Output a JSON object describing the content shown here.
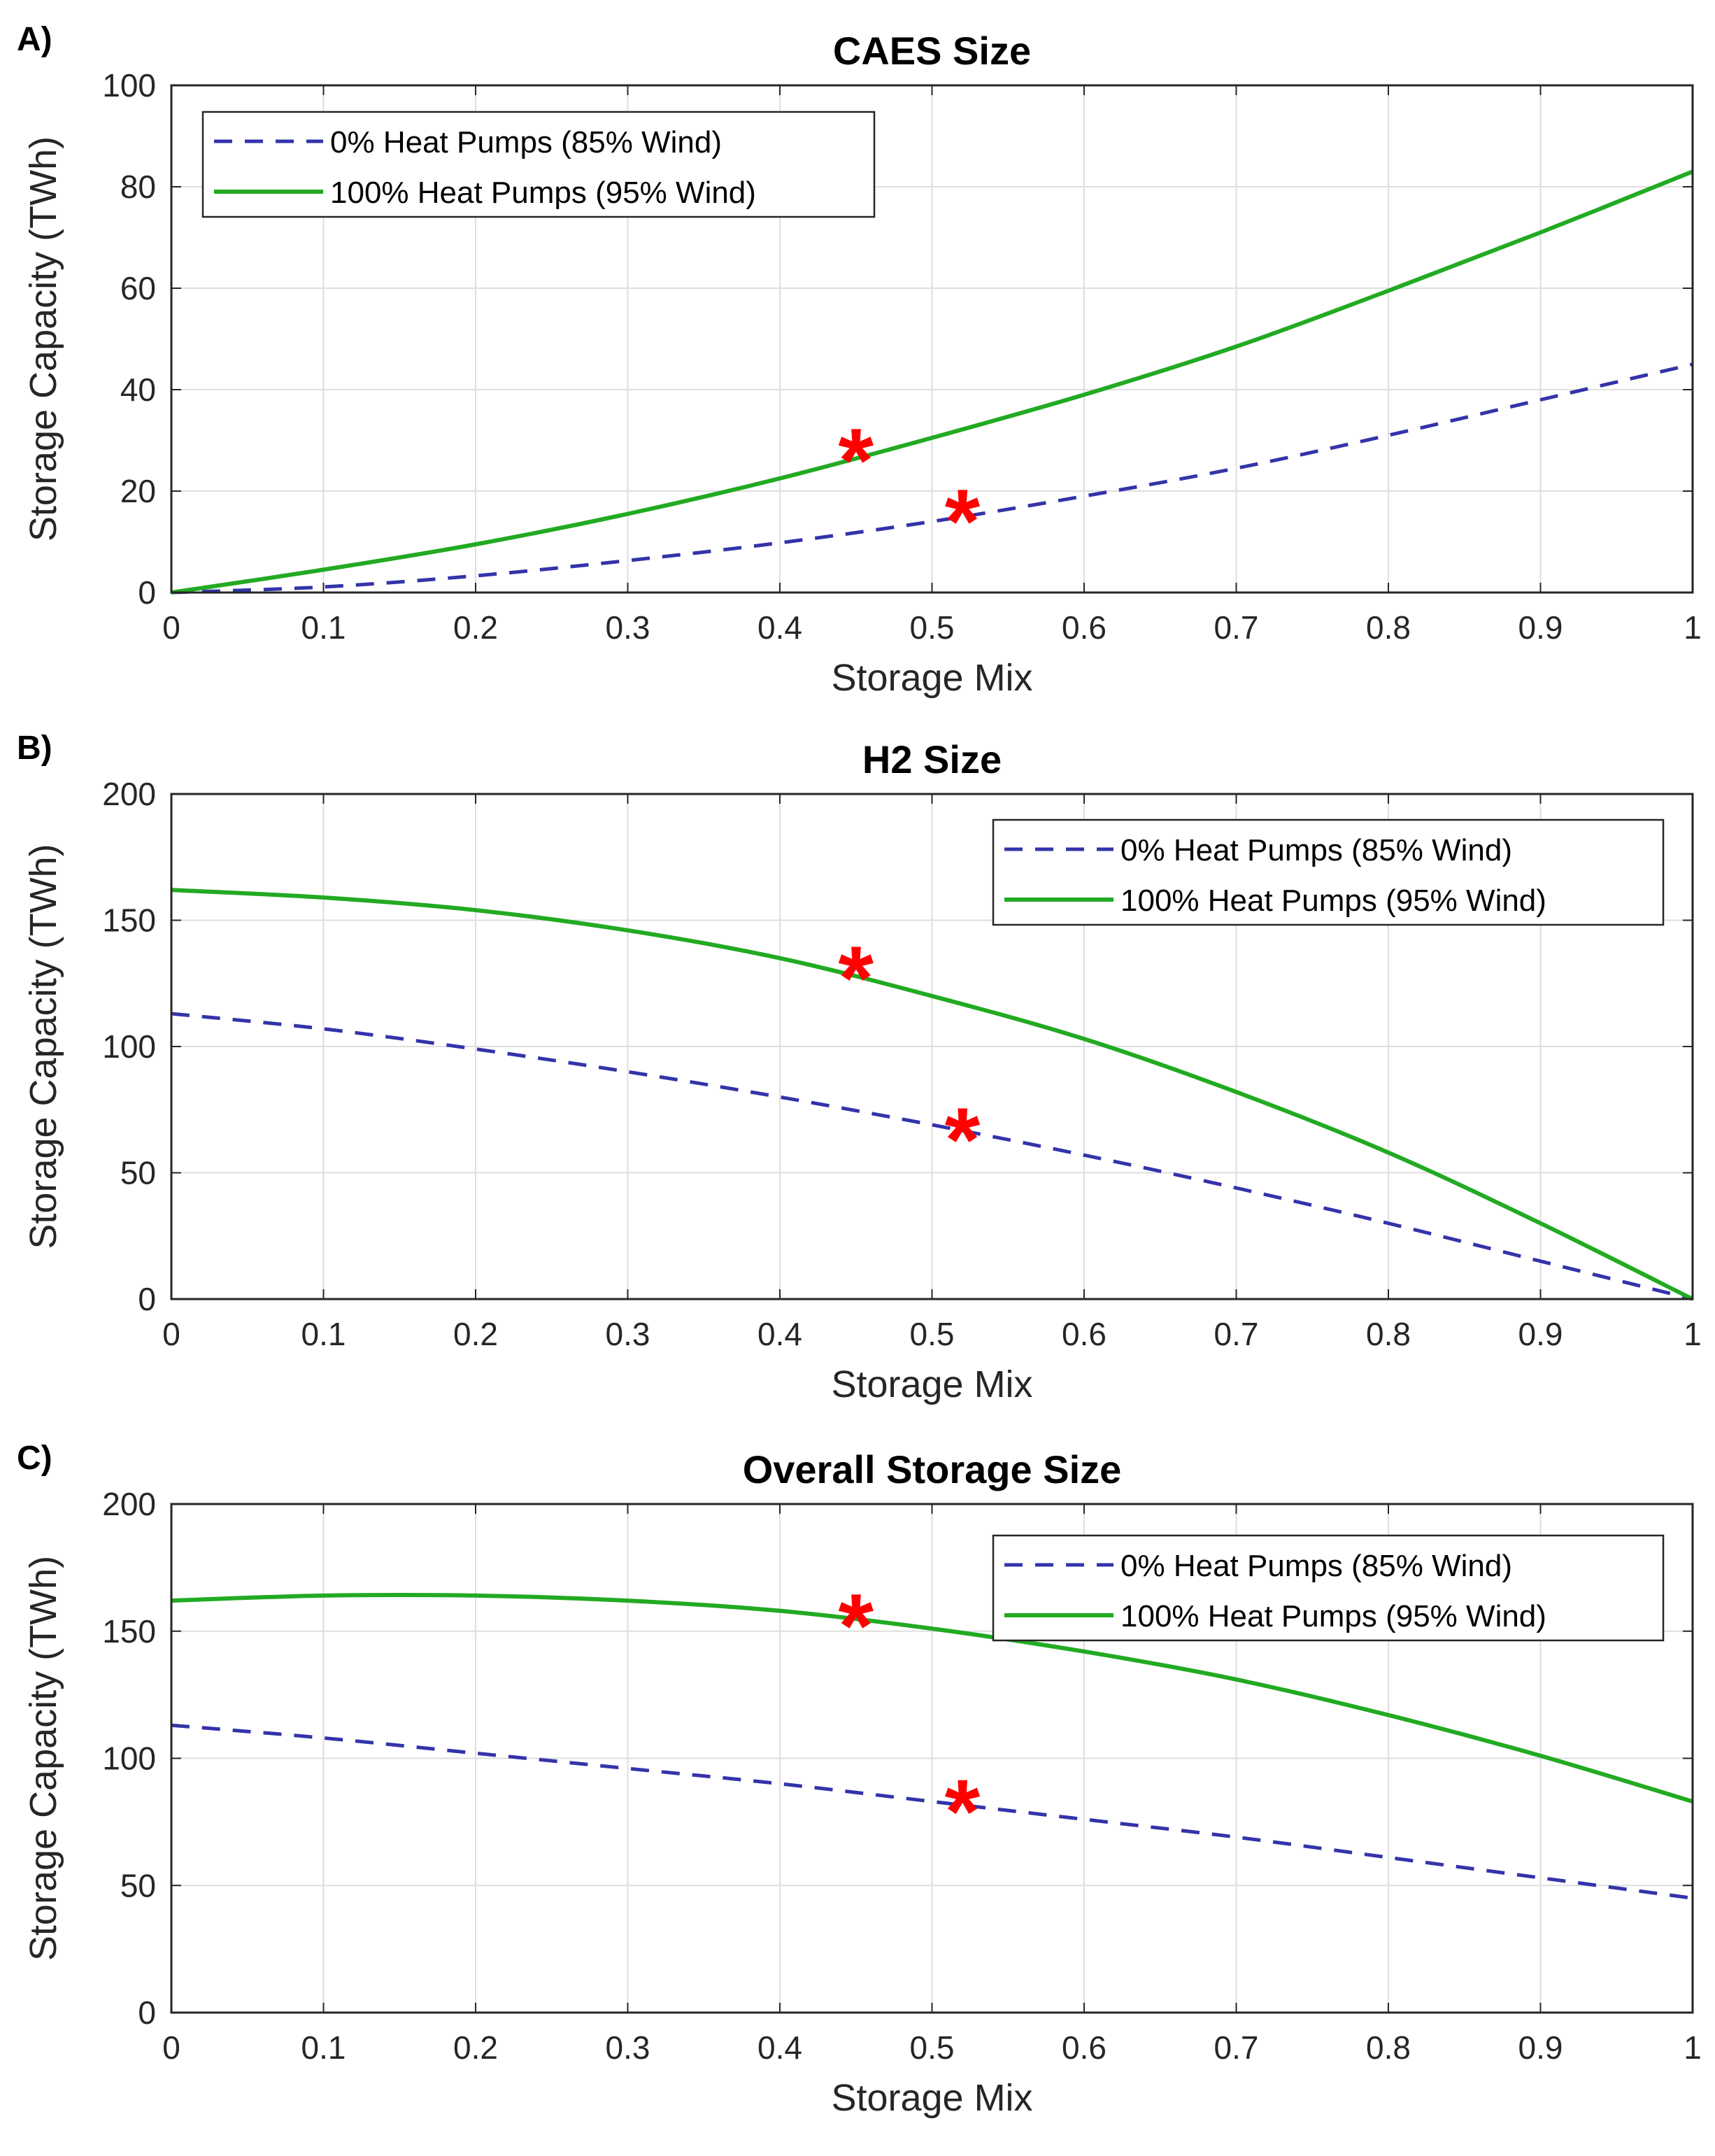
{
  "chart_data": [
    {
      "panel_label": "A)",
      "type": "line",
      "title": "CAES Size",
      "xlabel": "Storage Mix",
      "ylabel": "Storage Capacity (TWh)",
      "xlim": [
        0,
        1
      ],
      "ylim": [
        0,
        100
      ],
      "xticks": [
        "0",
        "0.1",
        "0.2",
        "0.3",
        "0.4",
        "0.5",
        "0.6",
        "0.7",
        "0.8",
        "0.9",
        "1"
      ],
      "yticks": [
        "0",
        "20",
        "40",
        "60",
        "80",
        "100"
      ],
      "grid": true,
      "legend_position": "top-left",
      "x": [
        0,
        0.1,
        0.2,
        0.3,
        0.4,
        0.5,
        0.6,
        0.7,
        0.8,
        0.9,
        1
      ],
      "series": [
        {
          "name": "0% Heat Pumps (85% Wind)",
          "style": "dashed",
          "color": "#3333aa",
          "values": [
            0,
            1.1,
            3.3,
            6.3,
            9.8,
            14,
            19,
            24.5,
            31,
            38,
            45
          ]
        },
        {
          "name": "100% Heat Pumps (95% Wind)",
          "style": "solid",
          "color": "#22aa22",
          "values": [
            0,
            4.5,
            9.5,
            15.5,
            22.5,
            30.5,
            39,
            48.5,
            59.5,
            71,
            83
          ]
        }
      ],
      "markers": [
        {
          "x": 0.45,
          "y": 26.5,
          "symbol": "*",
          "color": "#ff0000"
        },
        {
          "x": 0.52,
          "y": 14.5,
          "symbol": "*",
          "color": "#ff0000"
        }
      ]
    },
    {
      "panel_label": "B)",
      "type": "line",
      "title": "H2 Size",
      "xlabel": "Storage Mix",
      "ylabel": "Storage Capacity (TWh)",
      "xlim": [
        0,
        1
      ],
      "ylim": [
        0,
        200
      ],
      "xticks": [
        "0",
        "0.1",
        "0.2",
        "0.3",
        "0.4",
        "0.5",
        "0.6",
        "0.7",
        "0.8",
        "0.9",
        "1"
      ],
      "yticks": [
        "0",
        "50",
        "100",
        "150",
        "200"
      ],
      "grid": true,
      "legend_position": "top-right",
      "x": [
        0,
        0.1,
        0.2,
        0.3,
        0.4,
        0.5,
        0.6,
        0.7,
        0.8,
        0.9,
        1
      ],
      "series": [
        {
          "name": "0% Heat Pumps (85% Wind)",
          "style": "dashed",
          "color": "#3333aa",
          "values": [
            113,
            107,
            99,
            90,
            80,
            69,
            57,
            44,
            30,
            15,
            0
          ]
        },
        {
          "name": "100% Heat Pumps (95% Wind)",
          "style": "solid",
          "color": "#22aa22",
          "values": [
            162,
            159,
            154,
            146,
            135,
            120,
            103,
            82,
            58,
            30,
            0
          ]
        }
      ],
      "markers": [
        {
          "x": 0.45,
          "y": 128,
          "symbol": "*",
          "color": "#ff0000"
        },
        {
          "x": 0.52,
          "y": 64,
          "symbol": "*",
          "color": "#ff0000"
        }
      ]
    },
    {
      "panel_label": "C)",
      "type": "line",
      "title": "Overall Storage Size",
      "xlabel": "Storage Mix",
      "ylabel": "Storage Capacity (TWh)",
      "xlim": [
        0,
        1
      ],
      "ylim": [
        0,
        200
      ],
      "xticks": [
        "0",
        "0.1",
        "0.2",
        "0.3",
        "0.4",
        "0.5",
        "0.6",
        "0.7",
        "0.8",
        "0.9",
        "1"
      ],
      "yticks": [
        "0",
        "50",
        "100",
        "150",
        "200"
      ],
      "grid": true,
      "legend_position": "top-right",
      "x": [
        0,
        0.1,
        0.2,
        0.3,
        0.4,
        0.5,
        0.6,
        0.7,
        0.8,
        0.9,
        1
      ],
      "series": [
        {
          "name": "0% Heat Pumps (85% Wind)",
          "style": "dashed",
          "color": "#3333aa",
          "values": [
            113,
            108,
            102,
            96,
            90,
            83,
            76,
            69,
            61,
            53,
            45
          ]
        },
        {
          "name": "100% Heat Pumps (95% Wind)",
          "style": "solid",
          "color": "#22aa22",
          "values": [
            162,
            164,
            164,
            162,
            158,
            151,
            142,
            131,
            117,
            101,
            83
          ]
        }
      ],
      "markers": [
        {
          "x": 0.45,
          "y": 153,
          "symbol": "*",
          "color": "#ff0000"
        },
        {
          "x": 0.52,
          "y": 80,
          "symbol": "*",
          "color": "#ff0000"
        }
      ]
    }
  ]
}
